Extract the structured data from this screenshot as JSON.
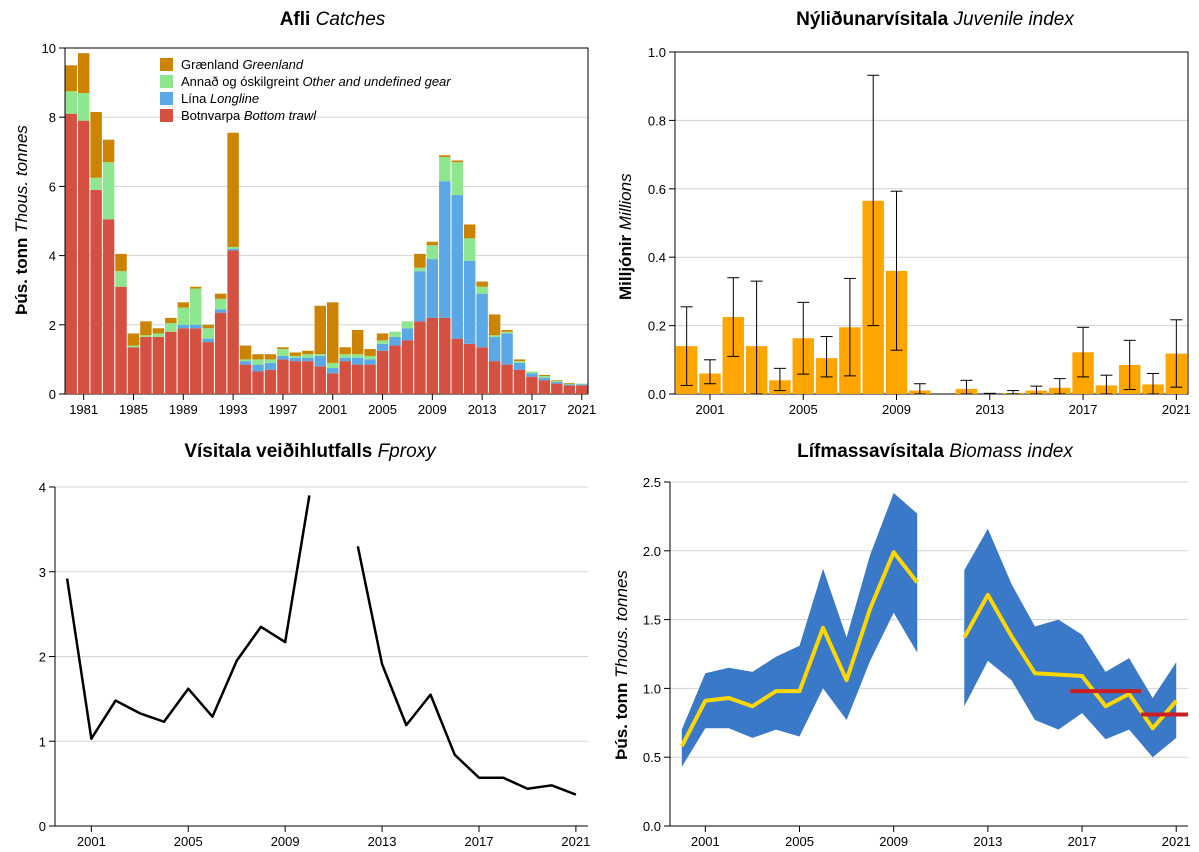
{
  "panels": {
    "catches": {
      "title_main": "Afli",
      "title_sub": "Catches",
      "ylabel_main": "Þús. tonn",
      "ylabel_sub": "Thous. tonnes",
      "legend": [
        {
          "main": "Grænland",
          "sub": "Greenland",
          "color": "#cc8400"
        },
        {
          "main": "Annað og óskilgreint",
          "sub": "Other and undefined gear",
          "color": "#8ee68e"
        },
        {
          "main": "Lína",
          "sub": "Longline",
          "color": "#5ba8e6"
        },
        {
          "main": "Botnvarpa",
          "sub": "Bottom trawl",
          "color": "#d45040"
        }
      ]
    },
    "juvenile": {
      "title_main": "Nýliðunarvísitala",
      "title_sub": "Juvenile index",
      "ylabel_main": "Milljónir",
      "ylabel_sub": "Millions"
    },
    "fproxy": {
      "title_main": "Vísitala veiðihlutfalls",
      "title_sub": "Fproxy"
    },
    "biomass": {
      "title_main": "Lífmassavísitala",
      "title_sub": "Biomass index",
      "ylabel_main": "Þús. tonn",
      "ylabel_sub": "Thous. tonnes"
    }
  },
  "chart_data": [
    {
      "id": "catches",
      "type": "bar",
      "stacked": true,
      "x": [
        1980,
        1981,
        1982,
        1983,
        1984,
        1985,
        1986,
        1987,
        1988,
        1989,
        1990,
        1991,
        1992,
        1993,
        1994,
        1995,
        1996,
        1997,
        1998,
        1999,
        2000,
        2001,
        2002,
        2003,
        2004,
        2005,
        2006,
        2007,
        2008,
        2009,
        2010,
        2011,
        2012,
        2013,
        2014,
        2015,
        2016,
        2017,
        2018,
        2019,
        2020,
        2021
      ],
      "xticks": [
        1981,
        1985,
        1989,
        1993,
        1997,
        2001,
        2005,
        2009,
        2013,
        2017,
        2021
      ],
      "ylim": [
        0,
        10
      ],
      "yticks": [
        0,
        2,
        4,
        6,
        8,
        10
      ],
      "grid": true,
      "legend_position": "top-left",
      "series": [
        {
          "name": "Botnvarpa Bottom trawl",
          "color": "#d45040",
          "values": [
            8.1,
            7.9,
            5.9,
            5.05,
            3.1,
            1.35,
            1.65,
            1.65,
            1.8,
            1.9,
            1.9,
            1.5,
            2.35,
            4.15,
            0.85,
            0.65,
            0.7,
            1.0,
            0.95,
            0.95,
            0.8,
            0.6,
            0.95,
            0.85,
            0.85,
            1.25,
            1.4,
            1.55,
            2.1,
            2.2,
            2.2,
            1.6,
            1.45,
            1.35,
            0.95,
            0.85,
            0.7,
            0.5,
            0.4,
            0.3,
            0.25,
            0.25
          ]
        },
        {
          "name": "Lína Longline",
          "color": "#5ba8e6",
          "values": [
            0,
            0,
            0,
            0,
            0,
            0,
            0,
            0,
            0,
            0.1,
            0.1,
            0.1,
            0.1,
            0.05,
            0.1,
            0.2,
            0.2,
            0.1,
            0.1,
            0.1,
            0.3,
            0.15,
            0.1,
            0.2,
            0.15,
            0.2,
            0.25,
            0.35,
            1.45,
            1.7,
            3.95,
            4.15,
            2.4,
            1.55,
            0.7,
            0.9,
            0.2,
            0.1,
            0.07,
            0.05,
            0.03,
            0.03
          ]
        },
        {
          "name": "Annað og óskilgreint Other and undefined gear",
          "color": "#8ee68e",
          "values": [
            0.65,
            0.8,
            0.35,
            1.65,
            0.45,
            0.05,
            0.05,
            0.1,
            0.25,
            0.5,
            1.05,
            0.3,
            0.3,
            0.05,
            0.05,
            0.15,
            0.1,
            0.2,
            0.05,
            0.1,
            0.05,
            0.15,
            0.1,
            0.1,
            0.1,
            0.1,
            0.15,
            0.2,
            0.1,
            0.4,
            0.7,
            0.95,
            0.65,
            0.2,
            0.05,
            0.05,
            0.05,
            0.05,
            0.05,
            0.03,
            0.02,
            0.02
          ]
        },
        {
          "name": "Grænland Greenland",
          "color": "#cc8400",
          "values": [
            0.75,
            1.15,
            1.9,
            0.65,
            0.5,
            0.35,
            0.4,
            0.15,
            0.15,
            0.15,
            0.05,
            0.1,
            0.15,
            3.3,
            0.4,
            0.15,
            0.15,
            0.05,
            0.1,
            0.1,
            1.4,
            1.75,
            0.2,
            0.7,
            0.2,
            0.2,
            0,
            0,
            0.4,
            0.1,
            0.05,
            0.05,
            0.4,
            0.15,
            0.6,
            0.05,
            0.05,
            0,
            0.03,
            0.02,
            0.02,
            0
          ]
        }
      ]
    },
    {
      "id": "juvenile",
      "type": "bar",
      "x": [
        2000,
        2001,
        2002,
        2003,
        2004,
        2005,
        2006,
        2007,
        2008,
        2009,
        2010,
        2011,
        2012,
        2013,
        2014,
        2015,
        2016,
        2017,
        2018,
        2019,
        2020,
        2021
      ],
      "xticks": [
        2001,
        2005,
        2009,
        2013,
        2017,
        2021
      ],
      "ylim": [
        0,
        1.0
      ],
      "yticks": [
        0.0,
        0.2,
        0.4,
        0.6,
        0.8,
        1.0
      ],
      "grid": true,
      "color": "#ffa500",
      "values": [
        0.14,
        0.06,
        0.225,
        0.14,
        0.04,
        0.163,
        0.105,
        0.195,
        0.565,
        0.36,
        0.01,
        0,
        0.015,
        0,
        0.003,
        0.01,
        0.018,
        0.122,
        0.025,
        0.085,
        0.028,
        0.118
      ],
      "error_low": [
        0.025,
        0.03,
        0.11,
        0,
        0.01,
        0.058,
        0.05,
        0.053,
        0.2,
        0.128,
        0,
        0,
        0,
        0,
        0,
        0,
        0,
        0.05,
        0,
        0.013,
        0,
        0.02
      ],
      "error_high": [
        0.255,
        0.1,
        0.34,
        0.33,
        0.075,
        0.268,
        0.168,
        0.338,
        0.932,
        0.593,
        0.03,
        0,
        0.04,
        0.002,
        0.01,
        0.023,
        0.045,
        0.195,
        0.055,
        0.157,
        0.06,
        0.217
      ]
    },
    {
      "id": "fproxy",
      "type": "line",
      "x": [
        2000,
        2001,
        2002,
        2003,
        2004,
        2005,
        2006,
        2007,
        2008,
        2009,
        2010,
        2011,
        2012,
        2013,
        2014,
        2015,
        2016,
        2017,
        2018,
        2019,
        2020,
        2021
      ],
      "xticks": [
        2001,
        2005,
        2009,
        2013,
        2017,
        2021
      ],
      "ylim": [
        0,
        4
      ],
      "yticks": [
        0,
        1,
        2,
        3,
        4
      ],
      "grid": true,
      "color": "#000000",
      "values": [
        2.92,
        1.03,
        1.48,
        1.33,
        1.23,
        1.62,
        1.29,
        1.95,
        2.35,
        2.17,
        3.9,
        null,
        3.3,
        1.91,
        1.19,
        1.55,
        0.84,
        0.57,
        0.57,
        0.44,
        0.48,
        0.37
      ]
    },
    {
      "id": "biomass",
      "type": "area",
      "x": [
        2000,
        2001,
        2002,
        2003,
        2004,
        2005,
        2006,
        2007,
        2008,
        2009,
        2010,
        2011,
        2012,
        2013,
        2014,
        2015,
        2016,
        2017,
        2018,
        2019,
        2020,
        2021
      ],
      "xticks": [
        2001,
        2005,
        2009,
        2013,
        2017,
        2021
      ],
      "ylim": [
        0,
        2.5
      ],
      "yticks": [
        0.0,
        0.5,
        1.0,
        1.5,
        2.0,
        2.5
      ],
      "grid": true,
      "line_color": "#ffd700",
      "band_color": "#3a78c8",
      "values": [
        0.58,
        0.91,
        0.93,
        0.87,
        0.98,
        0.98,
        1.44,
        1.06,
        1.58,
        1.99,
        1.77,
        null,
        1.37,
        1.68,
        1.38,
        1.11,
        1.1,
        1.09,
        0.87,
        0.96,
        0.71,
        0.91
      ],
      "lower": [
        0.43,
        0.71,
        0.71,
        0.64,
        0.7,
        0.65,
        1.0,
        0.77,
        1.2,
        1.55,
        1.26,
        null,
        0.87,
        1.2,
        1.06,
        0.77,
        0.7,
        0.82,
        0.63,
        0.7,
        0.5,
        0.64
      ],
      "upper": [
        0.7,
        1.11,
        1.15,
        1.12,
        1.23,
        1.31,
        1.87,
        1.37,
        1.97,
        2.42,
        2.27,
        null,
        1.86,
        2.16,
        1.76,
        1.45,
        1.5,
        1.39,
        1.12,
        1.22,
        0.93,
        1.19
      ],
      "reference_lines": [
        {
          "x_start": 2016.5,
          "x_end": 2019.5,
          "value": 0.98,
          "color": "#cc1f1f"
        },
        {
          "x_start": 2019.5,
          "x_end": 2021.5,
          "value": 0.81,
          "color": "#cc1f1f"
        }
      ]
    }
  ]
}
